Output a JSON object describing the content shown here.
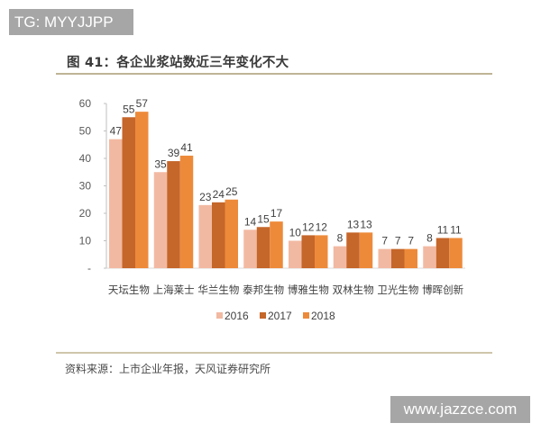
{
  "watermark_top": "TG: MYYJJPP",
  "watermark_bottom": "www.jazzce.com",
  "figure": {
    "title": "图 41：各企业浆站数近三年变化不大",
    "source": "资料来源：上市企业年报，天风证券研究所"
  },
  "chart_data": {
    "type": "bar",
    "title": "图 41：各企业浆站数近三年变化不大",
    "xlabel": "",
    "ylabel": "",
    "ylim": [
      0,
      60
    ],
    "yticks": [
      0,
      10,
      20,
      30,
      40,
      50,
      60
    ],
    "ytick_labels": [
      "-",
      "10",
      "20",
      "30",
      "40",
      "50",
      "60"
    ],
    "grid": false,
    "legend_position": "bottom",
    "categories": [
      "天坛生物",
      "上海莱士",
      "华兰生物",
      "泰邦生物",
      "博雅生物",
      "双林生物",
      "卫光生物",
      "博晖创新"
    ],
    "series": [
      {
        "name": "2016",
        "color": "#F2B9A2",
        "values": [
          47,
          35,
          23,
          14,
          10,
          8,
          7,
          8
        ]
      },
      {
        "name": "2017",
        "color": "#C5662A",
        "values": [
          55,
          39,
          24,
          15,
          12,
          13,
          7,
          11
        ]
      },
      {
        "name": "2018",
        "color": "#ED8A3A",
        "values": [
          57,
          41,
          25,
          17,
          12,
          13,
          7,
          11
        ]
      }
    ]
  }
}
